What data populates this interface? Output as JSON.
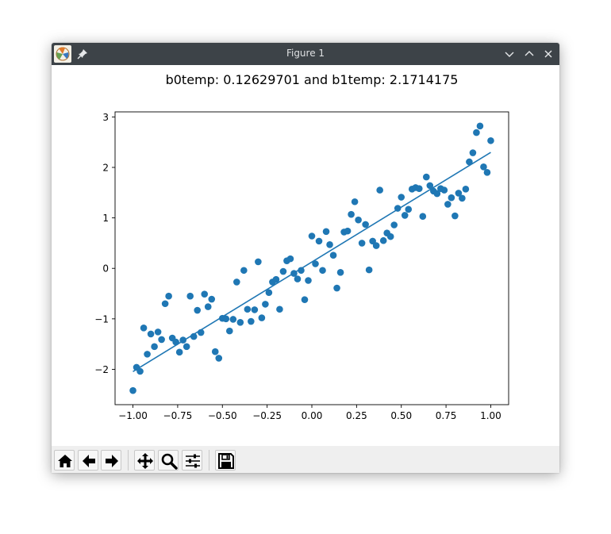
{
  "window": {
    "title": "Figure 1"
  },
  "toolbar": {
    "buttons": [
      "home-icon",
      "back-arrow-icon",
      "forward-arrow-icon",
      "pan-icon",
      "zoom-icon",
      "configure-subplots-icon",
      "save-icon"
    ]
  },
  "colors": {
    "marker": "#1f77b4",
    "line": "#1f77b4",
    "titlebar": "#3d4348"
  },
  "chart_data": {
    "type": "scatter",
    "title": "b0temp: 0.12629701 and b1temp: 2.1714175",
    "xlabel": "",
    "ylabel": "",
    "xlim": [
      -1.1,
      1.1
    ],
    "ylim": [
      -2.7,
      3.1
    ],
    "xticks": [
      -1.0,
      -0.75,
      -0.5,
      -0.25,
      0.0,
      0.25,
      0.5,
      0.75,
      1.0
    ],
    "xtick_labels": [
      "−1.00",
      "−0.75",
      "−0.50",
      "−0.25",
      "0.00",
      "0.25",
      "0.50",
      "0.75",
      "1.00"
    ],
    "yticks": [
      -2,
      -1,
      0,
      1,
      2,
      3
    ],
    "ytick_labels": [
      "−2",
      "−1",
      "0",
      "1",
      "2",
      "3"
    ],
    "grid": false,
    "series": [
      {
        "kind": "scatter",
        "x": [
          -1.0,
          -0.98,
          -0.96,
          -0.94,
          -0.92,
          -0.9,
          -0.88,
          -0.86,
          -0.84,
          -0.82,
          -0.8,
          -0.78,
          -0.76,
          -0.74,
          -0.72,
          -0.7,
          -0.68,
          -0.66,
          -0.64,
          -0.62,
          -0.6,
          -0.58,
          -0.56,
          -0.54,
          -0.52,
          -0.5,
          -0.48,
          -0.46,
          -0.44,
          -0.42,
          -0.4,
          -0.38,
          -0.36,
          -0.34,
          -0.32,
          -0.3,
          -0.28,
          -0.26,
          -0.24,
          -0.22,
          -0.2,
          -0.18,
          -0.16,
          -0.14,
          -0.12,
          -0.1,
          -0.08,
          -0.06,
          -0.04,
          -0.02,
          0.0,
          0.02,
          0.04,
          0.06,
          0.08,
          0.1,
          0.12,
          0.14,
          0.16,
          0.18,
          0.2,
          0.22,
          0.24,
          0.26,
          0.28,
          0.3,
          0.32,
          0.34,
          0.36,
          0.38,
          0.4,
          0.42,
          0.44,
          0.46,
          0.48,
          0.5,
          0.52,
          0.54,
          0.56,
          0.58,
          0.6,
          0.62,
          0.64,
          0.66,
          0.68,
          0.7,
          0.72,
          0.74,
          0.76,
          0.78,
          0.8,
          0.82,
          0.84,
          0.86,
          0.88,
          0.9,
          0.92,
          0.94,
          0.96,
          0.98,
          1.0
        ],
        "y": [
          -2.42,
          -1.96,
          -2.04,
          -1.18,
          -1.7,
          -1.3,
          -1.55,
          -1.26,
          -1.41,
          -0.7,
          -0.55,
          -1.38,
          -1.46,
          -1.66,
          -1.42,
          -1.55,
          -0.55,
          -1.35,
          -0.83,
          -1.27,
          -0.51,
          -0.76,
          -0.61,
          -1.65,
          -1.78,
          -0.99,
          -1.0,
          -1.24,
          -1.01,
          -0.27,
          -1.07,
          -0.04,
          -0.81,
          -1.05,
          -0.82,
          0.13,
          -0.98,
          -0.71,
          -0.48,
          -0.27,
          -0.22,
          -0.81,
          -0.06,
          0.15,
          0.19,
          -0.1,
          -0.21,
          -0.04,
          -0.62,
          -0.24,
          0.64,
          0.09,
          0.54,
          -0.04,
          0.73,
          0.47,
          0.26,
          -0.39,
          -0.08,
          0.72,
          0.74,
          1.07,
          1.32,
          0.96,
          0.5,
          0.87,
          -0.03,
          0.54,
          0.45,
          1.55,
          0.55,
          0.7,
          0.63,
          0.86,
          1.19,
          1.41,
          1.05,
          1.17,
          1.57,
          1.6,
          1.58,
          1.03,
          1.81,
          1.64,
          1.53,
          1.48,
          1.58,
          1.55,
          1.27,
          1.4,
          1.04,
          1.49,
          1.39,
          1.57,
          2.11,
          2.29,
          2.69,
          2.82,
          2.01,
          1.9,
          2.53
        ]
      },
      {
        "kind": "line",
        "x": [
          -1.0,
          1.0
        ],
        "y": [
          -2.04512049,
          2.29771451
        ]
      }
    ]
  }
}
